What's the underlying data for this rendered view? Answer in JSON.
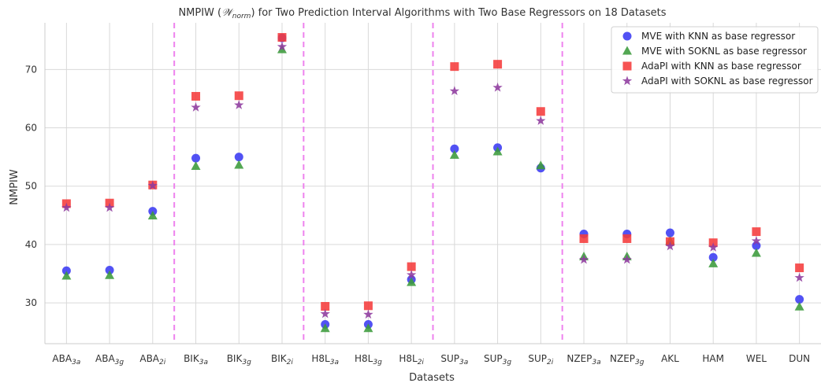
{
  "chart_data": {
    "type": "scatter",
    "title": {
      "prefix": "NMPIW (",
      "symbol": "𝒲",
      "symbol_sub": "norm",
      "suffix": ") for Two Prediction Interval Algorithms with Two Base Regressors on 18 Datasets"
    },
    "xlabel": "Datasets",
    "ylabel": "NMPIW",
    "ylim": [
      23,
      78
    ],
    "yticks": [
      30,
      40,
      50,
      60,
      70
    ],
    "grid": true,
    "legend_position": "top-right",
    "categories": [
      {
        "base": "ABA",
        "sub": "3a"
      },
      {
        "base": "ABA",
        "sub": "3g"
      },
      {
        "base": "ABA",
        "sub": "2i"
      },
      {
        "base": "BIK",
        "sub": "3a"
      },
      {
        "base": "BIK",
        "sub": "3g"
      },
      {
        "base": "BIK",
        "sub": "2i"
      },
      {
        "base": "H8L",
        "sub": "3a"
      },
      {
        "base": "H8L",
        "sub": "3g"
      },
      {
        "base": "H8L",
        "sub": "2i"
      },
      {
        "base": "SUP",
        "sub": "3a"
      },
      {
        "base": "SUP",
        "sub": "3g"
      },
      {
        "base": "SUP",
        "sub": "2i"
      },
      {
        "base": "NZEP",
        "sub": "3a"
      },
      {
        "base": "NZEP",
        "sub": "3g"
      },
      {
        "base": "AKL",
        "sub": ""
      },
      {
        "base": "HAM",
        "sub": ""
      },
      {
        "base": "WEL",
        "sub": ""
      },
      {
        "base": "DUN",
        "sub": ""
      }
    ],
    "group_separators_after_index": [
      2,
      5,
      8,
      11
    ],
    "separator_color": "#ee82ee",
    "series": [
      {
        "name": "MVE with KNN as base regressor",
        "marker": "circle",
        "color": "#3a3af2",
        "values": [
          35.5,
          35.6,
          45.7,
          54.8,
          55.0,
          75.4,
          26.3,
          26.3,
          34.0,
          56.4,
          56.6,
          53.1,
          41.8,
          41.8,
          42.0,
          37.8,
          39.8,
          30.6
        ]
      },
      {
        "name": "MVE with SOKNL as base regressor",
        "marker": "triangle",
        "color": "#3b9b3b",
        "values": [
          34.6,
          34.7,
          44.9,
          53.4,
          53.6,
          73.4,
          25.6,
          25.6,
          33.5,
          55.3,
          55.9,
          53.5,
          37.9,
          37.9,
          40.6,
          36.7,
          38.5,
          29.3
        ]
      },
      {
        "name": "AdaPI with KNN as base regressor",
        "marker": "square",
        "color": "#f53b3b",
        "values": [
          47.0,
          47.1,
          50.2,
          65.4,
          65.5,
          75.5,
          29.4,
          29.5,
          36.2,
          70.5,
          70.9,
          62.8,
          41.0,
          41.0,
          40.5,
          40.3,
          42.2,
          36.0
        ]
      },
      {
        "name": "AdaPI with SOKNL as base regressor",
        "marker": "star",
        "color": "#8e3a9e",
        "values": [
          46.3,
          46.3,
          50.1,
          63.5,
          63.9,
          73.9,
          28.1,
          28.0,
          34.8,
          66.3,
          66.9,
          61.2,
          37.4,
          37.4,
          39.7,
          39.5,
          40.6,
          34.3
        ]
      }
    ]
  }
}
